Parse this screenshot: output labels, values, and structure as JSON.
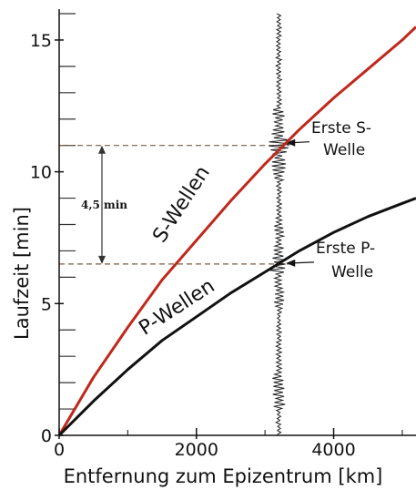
{
  "chart_data": {
    "type": "line",
    "xlabel": "Entfernung zum Epizentrum [km]",
    "ylabel": "Laufzeit [min]",
    "xlim": [
      0,
      5200
    ],
    "ylim": [
      0,
      16
    ],
    "x_ticks": [
      0,
      2000,
      4000
    ],
    "y_ticks": [
      0,
      5,
      10,
      15
    ],
    "grid": false,
    "series": [
      {
        "name": "S-Wellen",
        "color": "#c0281c",
        "x": [
          0,
          500,
          1000,
          1500,
          2000,
          2500,
          3000,
          3500,
          4000,
          4500,
          5000,
          5200
        ],
        "y": [
          0,
          2.2,
          4.1,
          5.9,
          7.4,
          8.9,
          10.3,
          11.6,
          12.8,
          13.9,
          15.0,
          15.5
        ]
      },
      {
        "name": "P-Wellen",
        "color": "#111111",
        "x": [
          0,
          500,
          1000,
          1500,
          2000,
          2500,
          3000,
          3500,
          4000,
          4500,
          5000,
          5200
        ],
        "y": [
          0,
          1.3,
          2.5,
          3.6,
          4.5,
          5.4,
          6.2,
          7.0,
          7.7,
          8.3,
          8.8,
          9.0
        ]
      }
    ],
    "seismogram_x": 3200,
    "annotations": {
      "first_s": {
        "line1": "Erste S-",
        "line2": "Welle",
        "y": 11
      },
      "first_p": {
        "line1": "Erste P-",
        "line2": "Welle",
        "y": 6.5
      },
      "interval": {
        "label": "4,5 min",
        "from": 6.5,
        "to": 11
      }
    }
  }
}
